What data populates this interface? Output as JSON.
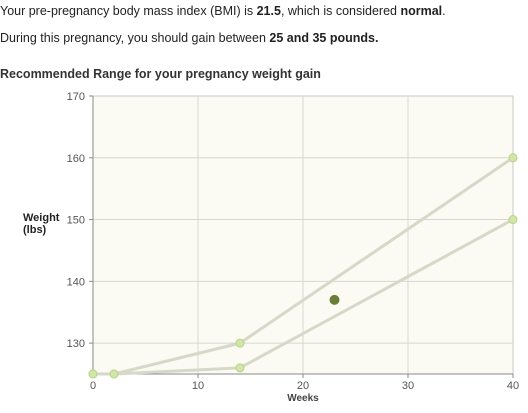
{
  "summary": {
    "bmi_prefix": "Your pre-pregnancy body mass index (BMI) is ",
    "bmi_value": "21.5",
    "bmi_middle": ", which is considered ",
    "bmi_category": "normal",
    "bmi_suffix": ".",
    "gain_prefix": "During this pregnancy, you should gain between ",
    "gain_range": "25 and 35 pounds.",
    "gain_suffix": ""
  },
  "chart_data": {
    "type": "line",
    "title": "Recommended Range for your pregnancy weight gain",
    "xlabel": "Weeks",
    "ylabel_line1": "Weight",
    "ylabel_line2": "(lbs)",
    "xlim": [
      0,
      40
    ],
    "ylim": [
      125,
      170
    ],
    "x_ticks": [
      0,
      10,
      20,
      30,
      40
    ],
    "y_ticks": [
      130,
      140,
      150,
      160,
      170
    ],
    "grid": true,
    "series": [
      {
        "x": [
          0,
          2,
          14,
          40
        ],
        "values": [
          125,
          125,
          130,
          160
        ]
      },
      {
        "x": [
          0,
          2,
          14,
          40
        ],
        "values": [
          125,
          125,
          126,
          150
        ]
      }
    ],
    "current_point": {
      "x": 23,
      "y": 137
    },
    "colors": {
      "range_line": "#d6d8c8",
      "range_point_fill": "#d2e6a8",
      "range_point_stroke": "#b9d18a",
      "current_point": "#6b7d3a",
      "grid": "#d8d8d0",
      "plot_bg": "#fbfbf4",
      "axis": "#8a8a8a"
    }
  }
}
